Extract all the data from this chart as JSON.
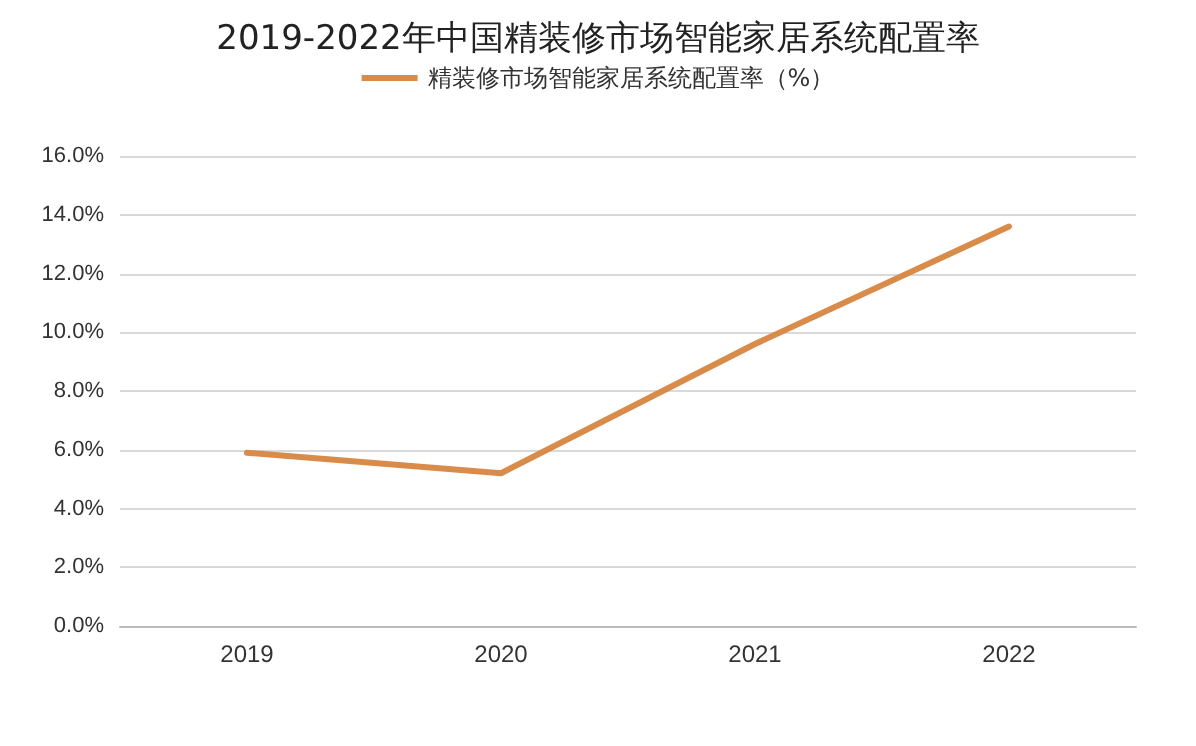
{
  "chart_data": {
    "type": "line",
    "title": "2019-2022年中国精装修市场智能家居系统配置率",
    "categories": [
      "2019",
      "2020",
      "2021",
      "2022"
    ],
    "series": [
      {
        "name": "精装修市场智能家居系统配置率（%）",
        "color": "#d98c4a",
        "values": [
          5.9,
          5.2,
          9.6,
          13.6
        ]
      }
    ],
    "ylim": [
      0,
      16
    ],
    "yticks": [
      {
        "value": 0,
        "label": "0.0%"
      },
      {
        "value": 2,
        "label": "2.0%"
      },
      {
        "value": 4,
        "label": "4.0%"
      },
      {
        "value": 6,
        "label": "6.0%"
      },
      {
        "value": 8,
        "label": "8.0%"
      },
      {
        "value": 10,
        "label": "10.0%"
      },
      {
        "value": 12,
        "label": "12.0%"
      },
      {
        "value": 14,
        "label": "14.0%"
      },
      {
        "value": 16,
        "label": "16.0%"
      }
    ],
    "grid": "y",
    "legend": "top",
    "marker": "none",
    "line_style": "solid"
  }
}
